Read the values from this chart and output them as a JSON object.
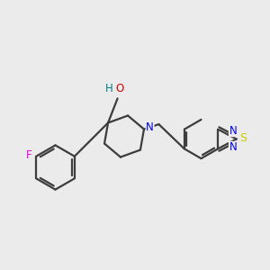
{
  "background_color": "#ebebeb",
  "bond_color": "#3d3d3d",
  "bond_lw": 1.6,
  "atom_colors": {
    "F": "#ee00ee",
    "N": "#0000ee",
    "O": "#cc0000",
    "S": "#cccc00",
    "H_O": "#008080"
  },
  "figsize": [
    3.0,
    3.0
  ],
  "dpi": 100,
  "xlim": [
    0,
    10
  ],
  "ylim": [
    0,
    10
  ]
}
